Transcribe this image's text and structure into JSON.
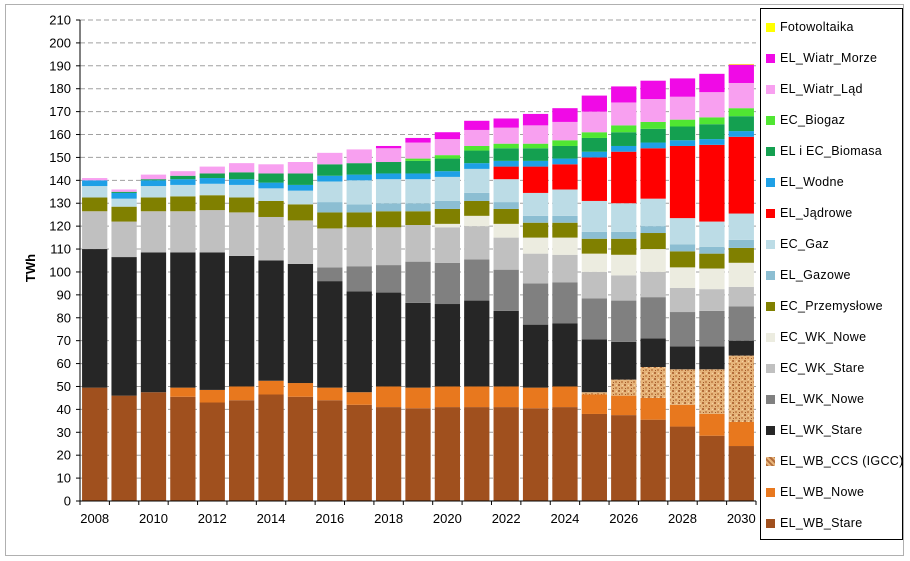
{
  "chart_data": {
    "type": "bar",
    "stacked": true,
    "ylabel": "TWh",
    "xlabel": "",
    "ylim": [
      0,
      210
    ],
    "ytick_step": 10,
    "grid": "horizontal-dashed",
    "legend_position": "right",
    "categories": [
      "2008",
      "2009",
      "2010",
      "2011",
      "2012",
      "2013",
      "2014",
      "2015",
      "2016",
      "2017",
      "2018",
      "2019",
      "2020",
      "2021",
      "2022",
      "2023",
      "2024",
      "2025",
      "2026",
      "2027",
      "2028",
      "2029",
      "2030"
    ],
    "x_tick_labels": [
      "2008",
      "2010",
      "2012",
      "2014",
      "2016",
      "2018",
      "2020",
      "2022",
      "2024",
      "2026",
      "2028",
      "2030"
    ],
    "series": [
      {
        "name": "EL_WB_Stare",
        "color": "#a0501e",
        "values": [
          49.5,
          46,
          47.5,
          45.5,
          43,
          44,
          46.5,
          45.5,
          44,
          42,
          41,
          40.5,
          41,
          41,
          41,
          40.5,
          41,
          38,
          37.5,
          35.5,
          32.5,
          28.5,
          24
        ]
      },
      {
        "name": "EL_WB_Nowe",
        "color": "#e8781e",
        "values": [
          0,
          0,
          0,
          4,
          5.5,
          6,
          6,
          6,
          5.5,
          5.5,
          9,
          9,
          9,
          9,
          9,
          9,
          9,
          8.5,
          8.5,
          9.5,
          9.5,
          9.5,
          10.5
        ]
      },
      {
        "name": "EL_WB_CCS (IGCC)",
        "color": "#d2a56e",
        "pattern": true,
        "values": [
          0,
          0,
          0,
          0,
          0,
          0,
          0,
          0,
          0,
          0,
          0,
          0,
          0,
          0,
          0,
          0,
          0,
          1,
          7,
          13.5,
          15.5,
          19.5,
          29
        ]
      },
      {
        "name": "EL_WK_Stare",
        "color": "#262626",
        "values": [
          60.5,
          60.5,
          61,
          59,
          60,
          57,
          52.5,
          52,
          46.5,
          44,
          41,
          37,
          36,
          37.5,
          33,
          27.5,
          27.5,
          23,
          16.5,
          12.5,
          10,
          10,
          6.5
        ]
      },
      {
        "name": "EL_WK_Nowe",
        "color": "#808080",
        "values": [
          0,
          0,
          0,
          0,
          0,
          0,
          0,
          0,
          6,
          11,
          12,
          18,
          18,
          18,
          18,
          18,
          18,
          18,
          18,
          18,
          15,
          15.5,
          15
        ]
      },
      {
        "name": "EC_WK_Stare",
        "color": "#c0c0c0",
        "values": [
          16.5,
          15.5,
          18,
          18,
          18.5,
          19,
          19,
          19,
          17,
          17,
          16.5,
          16,
          15.5,
          14.5,
          14,
          13,
          12,
          11.5,
          11,
          11,
          10.5,
          9.5,
          8.5
        ]
      },
      {
        "name": "EC_WK_Nowe",
        "color": "#ecece0",
        "values": [
          0,
          0,
          0,
          0,
          0,
          0,
          0,
          0,
          0,
          0,
          0,
          0,
          1.5,
          4.5,
          6,
          7,
          7.5,
          8,
          9,
          10,
          9,
          9,
          10.5
        ]
      },
      {
        "name": "EC_Przemysłowe",
        "color": "#808000",
        "values": [
          6,
          6.5,
          6,
          6.5,
          6.5,
          6.5,
          7,
          7,
          7,
          6.5,
          7,
          6,
          6.5,
          6.5,
          6.5,
          6.5,
          6.5,
          6.5,
          7,
          7,
          7,
          6.5,
          6.5
        ]
      },
      {
        "name": "EL_Gazowe",
        "color": "#8cbed2",
        "values": [
          0,
          0,
          0,
          0,
          0,
          0,
          0,
          0,
          4.5,
          3.5,
          3.5,
          3.5,
          3.5,
          3.5,
          3,
          3,
          3,
          3,
          3,
          3,
          3,
          3,
          3.5
        ]
      },
      {
        "name": "EC_Gaz",
        "color": "#bcdce6",
        "values": [
          5,
          3.5,
          5,
          5,
          5,
          5.5,
          5.5,
          6,
          9,
          10.5,
          10.5,
          10.5,
          10.5,
          10.5,
          10,
          10,
          11.5,
          13.5,
          12.5,
          12,
          11.5,
          11,
          11.5
        ]
      },
      {
        "name": "EL_Jądrowe",
        "color": "#ff0000",
        "values": [
          0,
          0,
          0,
          0,
          0,
          0,
          0,
          0,
          0,
          0,
          0,
          0,
          0,
          0,
          5.5,
          11.5,
          11,
          19,
          22.5,
          22,
          31.5,
          33.5,
          33.5
        ]
      },
      {
        "name": "EL_Wodne",
        "color": "#1ea0e6",
        "values": [
          2.5,
          2.5,
          2.5,
          2.5,
          2.5,
          2.5,
          2.5,
          2.5,
          2.5,
          2.5,
          2.5,
          2.5,
          2.5,
          2.5,
          2.5,
          2.5,
          2.5,
          2.5,
          2.5,
          2.5,
          2.5,
          2.5,
          2.5
        ]
      },
      {
        "name": "EL i EC_Biomasa",
        "color": "#14a050",
        "values": [
          0,
          0.5,
          0.5,
          1.5,
          2,
          3,
          4,
          5,
          5,
          5,
          5,
          5.5,
          5.5,
          5.5,
          5.5,
          5.5,
          5.5,
          6,
          6,
          6,
          6,
          6.5,
          6.5
        ]
      },
      {
        "name": "EC_Biogaz",
        "color": "#50e632",
        "values": [
          0,
          0,
          0,
          0,
          0,
          0,
          0,
          0,
          0,
          0,
          0,
          1,
          1.5,
          2,
          2,
          2,
          2.5,
          2.5,
          3,
          3,
          3,
          3,
          3.5
        ]
      },
      {
        "name": "EL_Wiatr_Ląd",
        "color": "#f8a0f0",
        "values": [
          1,
          1,
          2,
          2,
          3,
          4,
          4,
          5,
          5,
          6,
          6,
          7,
          7,
          7,
          7,
          8,
          8,
          9,
          10,
          10,
          10,
          11,
          11
        ]
      },
      {
        "name": "EL_Wiatr_Morze",
        "color": "#f00ae6",
        "values": [
          0,
          0,
          0,
          0,
          0,
          0,
          0,
          0,
          0,
          0,
          1,
          2,
          3,
          4,
          4,
          5,
          6,
          7,
          7,
          8,
          8,
          8,
          8
        ]
      },
      {
        "name": "Fotowoltaika",
        "color": "#ffff00",
        "values": [
          0,
          0,
          0,
          0,
          0,
          0,
          0,
          0,
          0,
          0,
          0,
          0,
          0,
          0,
          0,
          0,
          0,
          0,
          0,
          0,
          0,
          0,
          0.3
        ]
      }
    ]
  }
}
